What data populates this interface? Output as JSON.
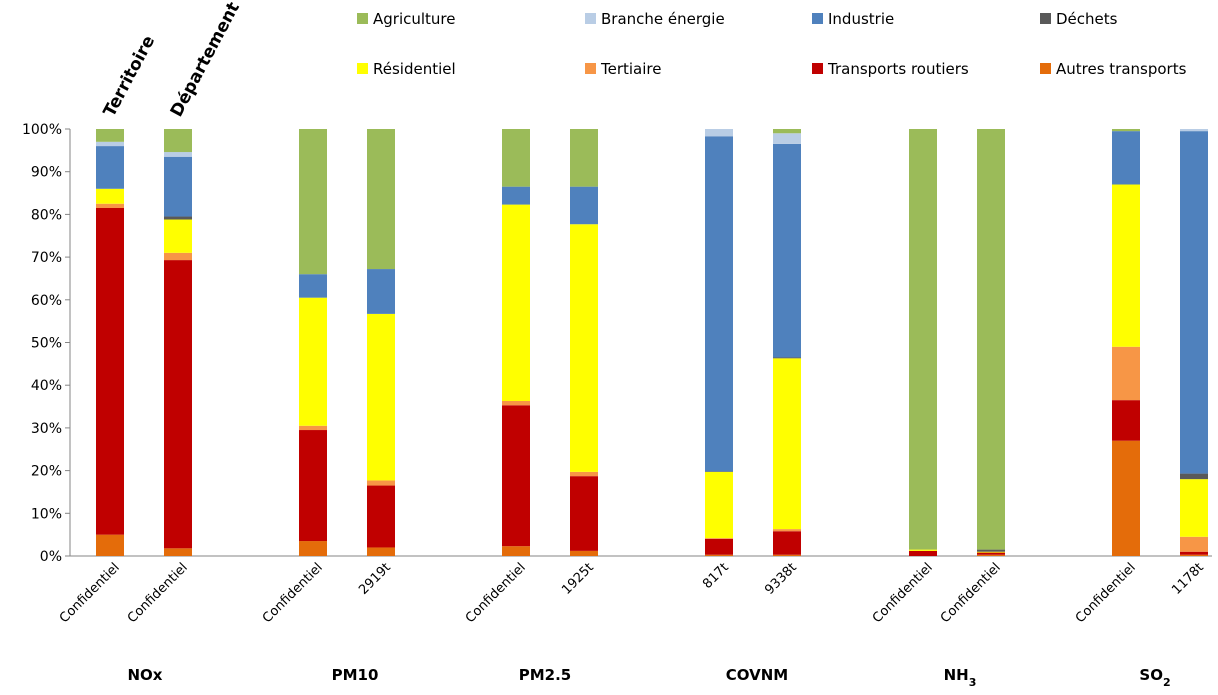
{
  "chart_data": {
    "type": "bar",
    "stacked": true,
    "normalized": true,
    "headers": [
      "Territoire",
      "Département"
    ],
    "legend": {
      "placement": "top",
      "items": [
        {
          "name": "Agriculture",
          "color": "#9bbb59"
        },
        {
          "name": "Branche énergie",
          "color": "#b9cde5"
        },
        {
          "name": "Industrie",
          "color": "#4f81bd"
        },
        {
          "name": "Déchets",
          "color": "#595959"
        },
        {
          "name": "Résidentiel",
          "color": "#ffff00"
        },
        {
          "name": "Tertiaire",
          "color": "#f79646"
        },
        {
          "name": "Transports routiers",
          "color": "#c00000"
        },
        {
          "name": "Autres transports",
          "color": "#e46c0a"
        }
      ]
    },
    "y_ticks": [
      "0%",
      "10%",
      "20%",
      "30%",
      "40%",
      "50%",
      "60%",
      "70%",
      "80%",
      "90%",
      "100%"
    ],
    "ylim": [
      0,
      100
    ],
    "grid": false,
    "stack_order": [
      "Autres transports",
      "Transports routiers",
      "Tertiaire",
      "Résidentiel",
      "Déchets",
      "Industrie",
      "Branche énergie",
      "Agriculture"
    ],
    "groups": [
      {
        "name": "NOx",
        "bars": [
          {
            "label": "Confidentiel",
            "values": {
              "Autres transports": 5,
              "Transports routiers": 76.5,
              "Tertiaire": 1,
              "Résidentiel": 3.5,
              "Déchets": 0,
              "Industrie": 10,
              "Branche énergie": 1,
              "Agriculture": 3
            }
          },
          {
            "label": "Confidentiel",
            "values": {
              "Autres transports": 1.8,
              "Transports routiers": 67.5,
              "Tertiaire": 1.7,
              "Résidentiel": 7.8,
              "Déchets": 0.7,
              "Industrie": 14,
              "Branche énergie": 1.1,
              "Agriculture": 5.4
            }
          }
        ]
      },
      {
        "name": "PM10",
        "bars": [
          {
            "label": "Confidentiel",
            "values": {
              "Autres transports": 3.5,
              "Transports routiers": 26,
              "Tertiaire": 1,
              "Résidentiel": 30,
              "Déchets": 0,
              "Industrie": 5.5,
              "Branche énergie": 0,
              "Agriculture": 34
            }
          },
          {
            "label": "2919t",
            "values": {
              "Autres transports": 2,
              "Transports routiers": 14.5,
              "Tertiaire": 1.2,
              "Résidentiel": 39,
              "Déchets": 0,
              "Industrie": 10.5,
              "Branche énergie": 0,
              "Agriculture": 32.8
            }
          }
        ]
      },
      {
        "name": "PM2.5",
        "bars": [
          {
            "label": "Confidentiel",
            "values": {
              "Autres transports": 2.3,
              "Transports routiers": 33,
              "Tertiaire": 1,
              "Résidentiel": 46,
              "Déchets": 0,
              "Industrie": 4.2,
              "Branche énergie": 0,
              "Agriculture": 13.5
            }
          },
          {
            "label": "1925t",
            "values": {
              "Autres transports": 1.2,
              "Transports routiers": 17.5,
              "Tertiaire": 1,
              "Résidentiel": 58,
              "Déchets": 0,
              "Industrie": 8.8,
              "Branche énergie": 0,
              "Agriculture": 13.5
            }
          }
        ]
      },
      {
        "name": "COVNM",
        "bars": [
          {
            "label": "817t",
            "values": {
              "Autres transports": 0.3,
              "Transports routiers": 3.7,
              "Tertiaire": 0.2,
              "Résidentiel": 15.5,
              "Déchets": 0.1,
              "Industrie": 78.5,
              "Branche énergie": 1.7,
              "Agriculture": 0
            }
          },
          {
            "label": "9338t",
            "values": {
              "Autres transports": 0.3,
              "Transports routiers": 5.5,
              "Tertiaire": 0.5,
              "Résidentiel": 40,
              "Déchets": 0.2,
              "Industrie": 50,
              "Branche énergie": 2.5,
              "Agriculture": 1
            }
          }
        ]
      },
      {
        "name": "NH3",
        "bars": [
          {
            "label": "Confidentiel",
            "values": {
              "Autres transports": 0,
              "Transports routiers": 1.2,
              "Tertiaire": 0,
              "Résidentiel": 0.3,
              "Déchets": 0,
              "Industrie": 0,
              "Branche énergie": 0,
              "Agriculture": 98.5
            }
          },
          {
            "label": "Confidentiel",
            "values": {
              "Autres transports": 0.3,
              "Transports routiers": 0.5,
              "Tertiaire": 0,
              "Résidentiel": 0.2,
              "Déchets": 0.5,
              "Industrie": 0,
              "Branche énergie": 0,
              "Agriculture": 98.5
            }
          }
        ]
      },
      {
        "name": "SO2",
        "bars": [
          {
            "label": "Confidentiel",
            "values": {
              "Autres transports": 27,
              "Transports routiers": 9.5,
              "Tertiaire": 12.5,
              "Résidentiel": 38,
              "Déchets": 0,
              "Industrie": 12.5,
              "Branche énergie": 0,
              "Agriculture": 0.5
            }
          },
          {
            "label": "1178t",
            "values": {
              "Autres transports": 0.3,
              "Transports routiers": 0.7,
              "Tertiaire": 3.5,
              "Résidentiel": 13.5,
              "Déchets": 1.3,
              "Industrie": 80.2,
              "Branche énergie": 0.5,
              "Agriculture": 0
            }
          }
        ]
      }
    ]
  }
}
